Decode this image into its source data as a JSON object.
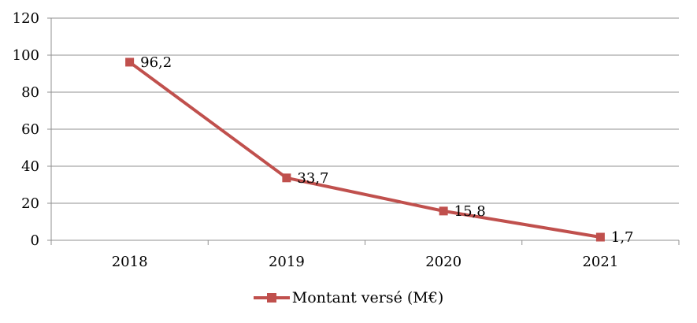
{
  "chart_data": {
    "type": "line",
    "title": "",
    "xlabel": "",
    "ylabel": "",
    "categories": [
      "2018",
      "2019",
      "2020",
      "2021"
    ],
    "series": [
      {
        "name": "Montant versé (M€)",
        "values": [
          96.2,
          33.7,
          15.8,
          1.7
        ],
        "data_labels": [
          "96,2",
          "33,7",
          "15,8",
          "1,7"
        ],
        "color": "#C0504D",
        "marker": "square",
        "line_width": 4,
        "marker_size": 11
      }
    ],
    "ylim": [
      0,
      120
    ],
    "yticks": [
      0,
      20,
      40,
      60,
      80,
      100,
      120
    ],
    "ytick_labels": [
      "0",
      "20",
      "40",
      "60",
      "80",
      "100",
      "120"
    ],
    "grid": true,
    "grid_color": "#909090",
    "axis_color": "#909090",
    "text_color": "#000000",
    "legend_position": "bottom"
  },
  "legend": {
    "label": "Montant versé (M€)",
    "marker_color": "#C0504D"
  }
}
